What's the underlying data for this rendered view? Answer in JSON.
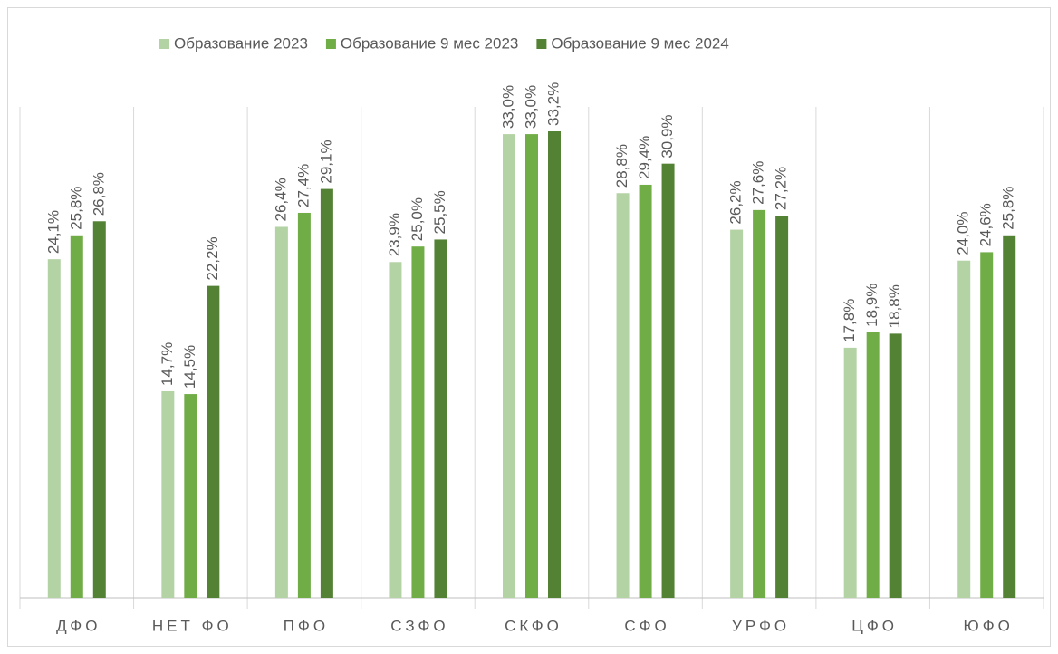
{
  "chart_data": {
    "type": "bar",
    "categories": [
      "ДФО",
      "НЕТ ФО",
      "ПФО",
      "СЗФО",
      "СКФО",
      "СФО",
      "УРФО",
      "ЦФО",
      "ЮФО"
    ],
    "series": [
      {
        "name": "Образование 2023",
        "color": "#b4d3a5",
        "values": [
          24.1,
          14.7,
          26.4,
          23.9,
          33.0,
          28.8,
          26.2,
          17.8,
          24.0
        ],
        "value_labels": [
          "24,1%",
          "14,7%",
          "26,4%",
          "23,9%",
          "33,0%",
          "28,8%",
          "26,2%",
          "17,8%",
          "24,0%"
        ]
      },
      {
        "name": "Образование 9 мес 2023",
        "color": "#70ad47",
        "values": [
          25.8,
          14.5,
          27.4,
          25.0,
          33.0,
          29.4,
          27.6,
          18.9,
          24.6
        ],
        "value_labels": [
          "25,8%",
          "14,5%",
          "27,4%",
          "25,0%",
          "33,0%",
          "29,4%",
          "27,6%",
          "18,9%",
          "24,6%"
        ]
      },
      {
        "name": "Образование 9 мес 2024",
        "color": "#548235",
        "values": [
          26.8,
          22.2,
          29.1,
          25.5,
          33.2,
          30.9,
          27.2,
          18.8,
          25.8
        ],
        "value_labels": [
          "26,8%",
          "22,2%",
          "29,1%",
          "25,5%",
          "33,2%",
          "30,9%",
          "27,2%",
          "18,8%",
          "25,8%"
        ]
      }
    ],
    "legend": "top"
  }
}
